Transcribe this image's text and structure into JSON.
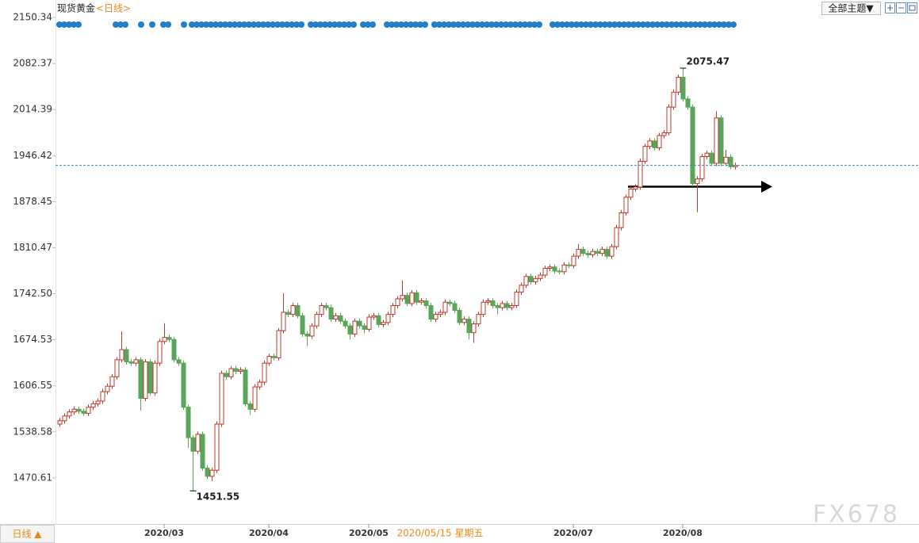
{
  "chart_data": {
    "type": "candlestick",
    "title": "现货黄金",
    "subtitle": "<日线>",
    "up_color": "#c0392b",
    "down_color": "#5aa55a",
    "ylim": [
      1402.64,
      2150.34
    ],
    "yticks": [
      2150.34,
      2082.37,
      2014.39,
      1946.42,
      1878.45,
      1810.47,
      {
        "value": 1742.5,
        "label": "1742.50"
      },
      1674.53,
      1606.55,
      1538.58,
      1470.61
    ],
    "xlim": [
      -0.5,
      180
    ],
    "xticks": [
      {
        "value": 22,
        "label": "2020/03"
      },
      {
        "value": 44,
        "label": "2020/04"
      },
      {
        "value": 65,
        "label": "2020/05"
      },
      {
        "value": 108,
        "label": "2020/07"
      },
      {
        "value": 131,
        "label": "2020/08"
      }
    ],
    "crosshair_label": {
      "value": 80,
      "label": "2020/05/15 星期五"
    },
    "open": [
      1550,
      1555,
      1562,
      1568,
      1572,
      1569,
      1566,
      1575,
      1580,
      1584,
      1598,
      1606,
      1620,
      1645,
      1660,
      1642,
      1640,
      1645,
      1588,
      1642,
      1596,
      1640,
      1672,
      1678,
      1675,
      1645,
      1640,
      1575,
      1530,
      1510,
      1535,
      1485,
      1473,
      1482,
      1550,
      1625,
      1620,
      1632,
      1628,
      1630,
      1580,
      1572,
      1605,
      1612,
      1640,
      1650,
      1648,
      1688,
      1715,
      1712,
      1725,
      1710,
      1683,
      1680,
      1695,
      1712,
      1725,
      1722,
      1705,
      1710,
      1702,
      1695,
      1683,
      1702,
      1695,
      1690,
      1708,
      1710,
      1697,
      1700,
      1712,
      1725,
      1735,
      1740,
      1728,
      1744,
      1730,
      1732,
      1725,
      1705,
      1712,
      1715,
      1730,
      1728,
      1718,
      1700,
      1705,
      1685,
      1698,
      1712,
      1730,
      1732,
      1725,
      1722,
      1728,
      1722,
      1725,
      1745,
      1755,
      1768,
      1760,
      1765,
      1770,
      1780,
      1782,
      1776,
      1775,
      1785,
      1784,
      1798,
      1808,
      1802,
      1800,
      1805,
      1802,
      1808,
      1798,
      1812,
      1840,
      1862,
      1885,
      1897,
      1900,
      1938,
      1960,
      1968,
      1958,
      1976,
      1980,
      2018,
      2040,
      2062,
      2030,
      2018,
      1905,
      1912,
      1945,
      1950,
      1935,
      2002,
      1935,
      1944,
      1930
    ],
    "high": [
      1559,
      1566,
      1572,
      1576,
      1576,
      1573,
      1579,
      1584,
      1588,
      1602,
      1610,
      1624,
      1649,
      1687,
      1664,
      1646,
      1649,
      1649,
      1646,
      1646,
      1644,
      1676,
      1699,
      1682,
      1679,
      1649,
      1644,
      1579,
      1534,
      1539,
      1539,
      1489,
      1486,
      1554,
      1629,
      1629,
      1636,
      1636,
      1634,
      1634,
      1584,
      1609,
      1616,
      1644,
      1654,
      1654,
      1692,
      1743,
      1719,
      1729,
      1729,
      1714,
      1687,
      1699,
      1716,
      1729,
      1729,
      1726,
      1714,
      1714,
      1706,
      1699,
      1706,
      1706,
      1699,
      1712,
      1714,
      1714,
      1704,
      1716,
      1729,
      1739,
      1762,
      1744,
      1748,
      1748,
      1736,
      1736,
      1729,
      1716,
      1719,
      1734,
      1734,
      1732,
      1722,
      1709,
      1709,
      1702,
      1716,
      1734,
      1736,
      1736,
      1729,
      1732,
      1732,
      1729,
      1749,
      1759,
      1772,
      1772,
      1769,
      1774,
      1784,
      1786,
      1786,
      1780,
      1789,
      1789,
      1802,
      1816,
      1812,
      1806,
      1809,
      1809,
      1812,
      1812,
      1816,
      1844,
      1866,
      1889,
      1901,
      1904,
      1942,
      1964,
      1972,
      1972,
      1980,
      1984,
      2022,
      2044,
      2066,
      2075.47,
      2034,
      2022,
      1916,
      1949,
      1954,
      1954,
      2012,
      2006,
      1955,
      1948,
      1936
    ],
    "low": [
      1546,
      1551,
      1558,
      1564,
      1565,
      1562,
      1562,
      1571,
      1576,
      1580,
      1594,
      1602,
      1616,
      1641,
      1638,
      1636,
      1636,
      1570,
      1584,
      1592,
      1592,
      1636,
      1668,
      1671,
      1641,
      1636,
      1571,
      1515,
      1451.55,
      1506,
      1481,
      1469,
      1466,
      1478,
      1546,
      1616,
      1616,
      1624,
      1624,
      1576,
      1564,
      1568,
      1601,
      1608,
      1636,
      1644,
      1644,
      1684,
      1708,
      1708,
      1706,
      1679,
      1665,
      1676,
      1691,
      1708,
      1718,
      1701,
      1701,
      1698,
      1691,
      1675,
      1679,
      1691,
      1684,
      1686,
      1704,
      1693,
      1693,
      1696,
      1708,
      1721,
      1731,
      1724,
      1724,
      1726,
      1726,
      1721,
      1701,
      1701,
      1708,
      1711,
      1724,
      1714,
      1696,
      1696,
      1675,
      1670,
      1694,
      1708,
      1726,
      1721,
      1712,
      1718,
      1718,
      1718,
      1721,
      1741,
      1751,
      1756,
      1756,
      1761,
      1766,
      1776,
      1772,
      1771,
      1771,
      1780,
      1780,
      1794,
      1798,
      1796,
      1796,
      1798,
      1798,
      1794,
      1794,
      1808,
      1836,
      1858,
      1881,
      1893,
      1896,
      1934,
      1956,
      1954,
      1954,
      1972,
      1976,
      2014,
      2036,
      2026,
      2014,
      1901,
      1863,
      1908,
      1941,
      1931,
      1931,
      1931,
      1931,
      1926,
      1926
    ],
    "close": [
      1555,
      1562,
      1568,
      1572,
      1569,
      1566,
      1575,
      1580,
      1584,
      1598,
      1606,
      1620,
      1645,
      1660,
      1642,
      1640,
      1645,
      1588,
      1642,
      1596,
      1640,
      1672,
      1678,
      1675,
      1645,
      1640,
      1575,
      1530,
      1510,
      1535,
      1485,
      1473,
      1482,
      1550,
      1625,
      1620,
      1632,
      1628,
      1630,
      1580,
      1572,
      1605,
      1612,
      1640,
      1650,
      1648,
      1688,
      1715,
      1712,
      1725,
      1710,
      1683,
      1680,
      1695,
      1712,
      1725,
      1722,
      1705,
      1710,
      1702,
      1695,
      1683,
      1702,
      1695,
      1690,
      1708,
      1710,
      1697,
      1700,
      1712,
      1725,
      1735,
      1740,
      1728,
      1744,
      1730,
      1732,
      1725,
      1705,
      1712,
      1715,
      1730,
      1728,
      1718,
      1700,
      1705,
      1685,
      1698,
      1712,
      1730,
      1732,
      1725,
      1722,
      1728,
      1722,
      1725,
      1745,
      1755,
      1768,
      1760,
      1765,
      1770,
      1780,
      1782,
      1776,
      1775,
      1785,
      1784,
      1798,
      1808,
      1802,
      1800,
      1805,
      1802,
      1808,
      1798,
      1812,
      1840,
      1862,
      1885,
      1897,
      1900,
      1938,
      1960,
      1968,
      1958,
      1976,
      1980,
      2018,
      2040,
      2062,
      2030,
      2018,
      1905,
      1912,
      1945,
      1950,
      1935,
      2002,
      1935,
      1944,
      1930,
      1932
    ]
  },
  "toolbar": {
    "theme_button": "全部主题▼",
    "period_tab": "日线 ▲"
  },
  "watermark": "FX678"
}
